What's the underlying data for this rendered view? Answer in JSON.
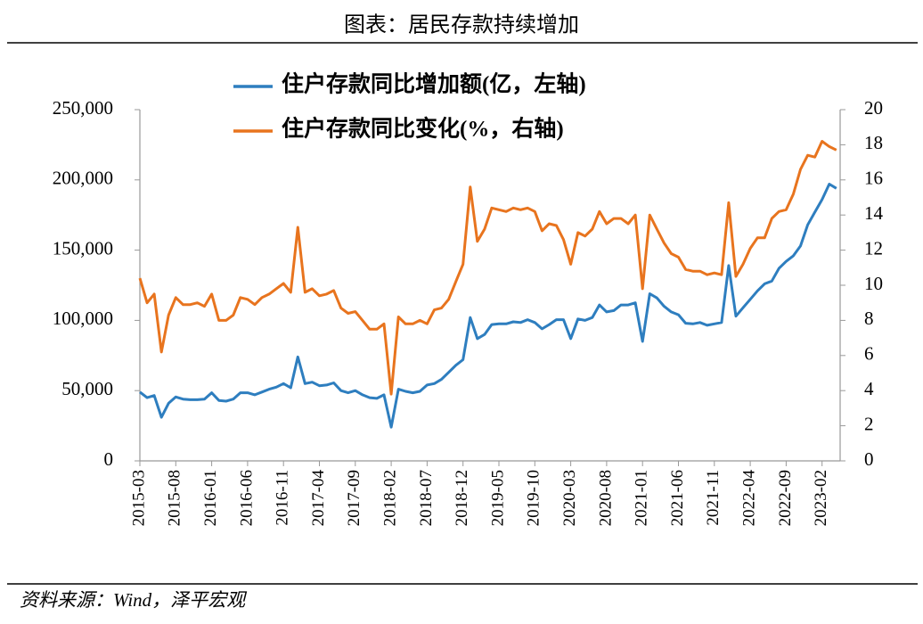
{
  "chart_data": {
    "type": "line",
    "title": "图表：居民存款持续增加",
    "source": "资料来源：Wind，泽平宏观",
    "categories": [
      "2015-03",
      null,
      null,
      null,
      null,
      "2015-08",
      null,
      null,
      null,
      null,
      "2016-01",
      null,
      null,
      null,
      null,
      "2016-06",
      null,
      null,
      null,
      null,
      "2016-11",
      null,
      null,
      null,
      null,
      "2017-04",
      null,
      null,
      null,
      null,
      "2017-09",
      null,
      null,
      null,
      null,
      "2018-02",
      null,
      null,
      null,
      null,
      "2018-07",
      null,
      null,
      null,
      null,
      "2018-12",
      null,
      null,
      null,
      null,
      "2019-05",
      null,
      null,
      null,
      null,
      "2019-10",
      null,
      null,
      null,
      null,
      "2020-03",
      null,
      null,
      null,
      null,
      "2020-08",
      null,
      null,
      null,
      null,
      "2021-01",
      null,
      null,
      null,
      null,
      "2021-06",
      null,
      null,
      null,
      null,
      "2021-11",
      null,
      null,
      null,
      null,
      "2022-04",
      null,
      null,
      null,
      null,
      "2022-09",
      null,
      null,
      null,
      null,
      "2023-02",
      null,
      null
    ],
    "series": [
      {
        "name": "住户存款同比增加额(亿，左轴)",
        "color": "#2e7ebf",
        "axis": "y",
        "values": [
          49000,
          45000,
          46500,
          31000,
          41000,
          45500,
          44000,
          43500,
          43500,
          44000,
          48500,
          43000,
          42500,
          44000,
          48500,
          48500,
          47000,
          49000,
          51000,
          52500,
          55000,
          52000,
          74000,
          55000,
          56000,
          53500,
          54000,
          55500,
          50000,
          48500,
          50000,
          47000,
          45000,
          44500,
          47000,
          24000,
          51000,
          49500,
          48500,
          49500,
          54000,
          55000,
          58000,
          63000,
          68000,
          72000,
          102000,
          87000,
          90000,
          97000,
          97500,
          97500,
          99000,
          98500,
          100500,
          98500,
          94000,
          97000,
          100500,
          100500,
          87000,
          101000,
          100000,
          102000,
          111000,
          106000,
          107000,
          111000,
          111000,
          112500,
          85000,
          119000,
          116000,
          110000,
          106000,
          104000,
          98000,
          97500,
          98500,
          96500,
          97500,
          98500,
          139000,
          103000,
          109000,
          115000,
          121000,
          126000,
          128000,
          137000,
          142000,
          146000,
          153000,
          168000,
          177000,
          186000,
          197000,
          194000
        ]
      },
      {
        "name": "住户存款同比变化(%，右轴)",
        "color": "#e8741e",
        "axis": "y2",
        "values": [
          10.4,
          9.0,
          9.5,
          6.2,
          8.3,
          9.3,
          8.9,
          8.9,
          9.0,
          8.8,
          9.5,
          8.0,
          8.0,
          8.3,
          9.3,
          9.2,
          8.9,
          9.3,
          9.5,
          9.8,
          10.1,
          9.6,
          13.3,
          9.6,
          9.8,
          9.4,
          9.5,
          9.7,
          8.7,
          8.4,
          8.5,
          8.0,
          7.5,
          7.5,
          7.8,
          3.8,
          8.2,
          7.8,
          7.8,
          8.0,
          7.8,
          8.6,
          8.7,
          9.2,
          10.2,
          11.2,
          15.6,
          12.5,
          13.2,
          14.4,
          14.3,
          14.2,
          14.4,
          14.3,
          14.4,
          14.2,
          13.1,
          13.5,
          13.4,
          12.6,
          11.2,
          13.0,
          12.8,
          13.2,
          14.2,
          13.5,
          13.8,
          13.8,
          13.5,
          14.0,
          9.8,
          14.0,
          13.2,
          12.4,
          11.8,
          11.6,
          10.9,
          10.8,
          10.8,
          10.6,
          10.7,
          10.6,
          14.7,
          10.5,
          11.2,
          12.1,
          12.7,
          12.7,
          13.8,
          14.2,
          14.3,
          15.2,
          16.6,
          17.4,
          17.3,
          18.2,
          17.9,
          17.7
        ]
      }
    ],
    "ylim": [
      0,
      250000
    ],
    "yticks": [
      0,
      {
        "value": 50000,
        "label": "50,000"
      },
      {
        "value": 100000,
        "label": "100,000"
      },
      {
        "value": 150000,
        "label": "150,000"
      },
      {
        "value": 200000,
        "label": "200,000"
      },
      {
        "value": 250000,
        "label": "250,000"
      }
    ],
    "y2lim": [
      0,
      20
    ],
    "y2ticks": [
      0,
      2,
      4,
      6,
      8,
      10,
      12,
      14,
      16,
      18,
      20
    ],
    "grid": false
  }
}
